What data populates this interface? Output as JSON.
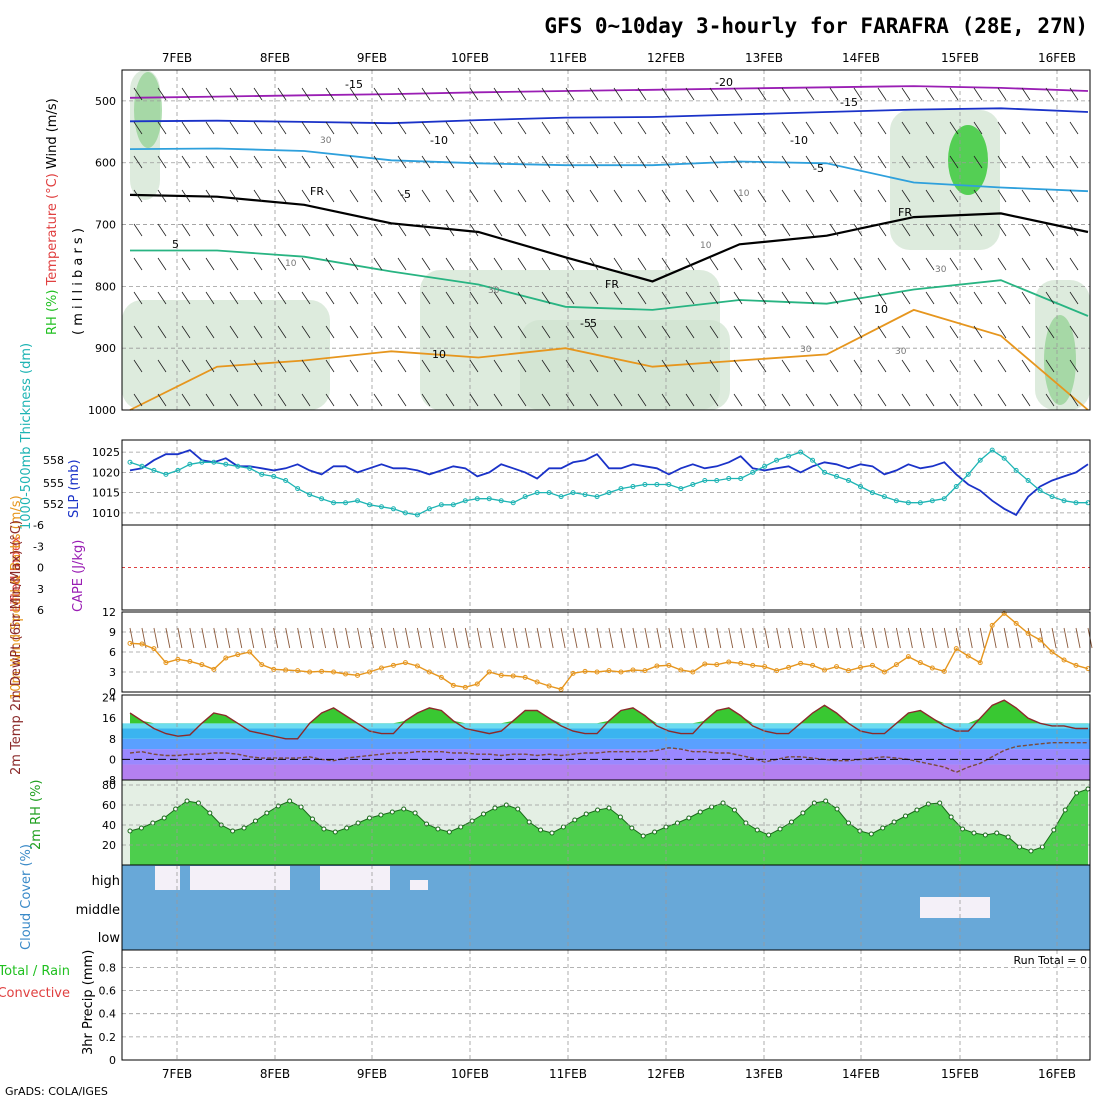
{
  "title": "GFS 0~10day 3-hourly for FARAFRA (28E, 27N)",
  "footer": "GrADS: COLA/IGES",
  "run_total": "Run Total = 0",
  "colors": {
    "blue_line": "#1a32c8",
    "cyan_line": "#1eb4b4",
    "orange_line": "#e6961e",
    "temp_fill": "#39c832",
    "rh_fill": "#32c832",
    "cloud_fill": "#68a8d8",
    "cape_zero": "#e04040",
    "purple": "#9a1eb4"
  },
  "chart_data": [
    {
      "type": "heatmap",
      "panel": "upper-air",
      "ylabel_parts": [
        "RH (%)",
        "Temperature (°C)",
        "Wind (m/s)"
      ],
      "yaxis_label": "( m i l l i b a r s )",
      "y_ticks": [
        "500",
        "600",
        "700",
        "800",
        "900",
        "1000"
      ],
      "ylim": [
        1000,
        450
      ],
      "x_ticks": [
        "7FEB",
        "8FEB",
        "9FEB",
        "10FEB",
        "11FEB",
        "12FEB",
        "13FEB",
        "14FEB",
        "15FEB",
        "16FEB"
      ],
      "isotherm_labels": [
        "-20",
        "-15",
        "-15",
        "-10",
        "-10",
        "-5",
        "-5",
        "-5",
        "5",
        "5",
        "10",
        "10",
        "FR",
        "FR",
        "FR"
      ],
      "rh_contour_labels": [
        "30",
        "30",
        "10",
        "10",
        "30",
        "30",
        "30",
        "10"
      ],
      "isotherms_hpa": [
        {
          "name": "-15",
          "values": [
            495,
            493,
            491,
            489,
            486,
            484,
            482,
            480,
            478,
            476,
            479,
            484
          ]
        },
        {
          "name": "-10",
          "values": [
            533,
            532,
            534,
            536,
            531,
            527,
            526,
            522,
            518,
            514,
            512,
            518
          ]
        },
        {
          "name": "-5",
          "values": [
            578,
            577,
            581,
            596,
            601,
            604,
            604,
            598,
            601,
            632,
            640,
            646
          ]
        },
        {
          "name": "FR",
          "values": [
            652,
            655,
            668,
            698,
            712,
            753,
            792,
            732,
            718,
            688,
            682,
            712
          ]
        },
        {
          "name": "5",
          "values": [
            742,
            742,
            752,
            776,
            797,
            833,
            838,
            822,
            828,
            805,
            790,
            848
          ]
        },
        {
          "name": "10",
          "values": [
            1000,
            930,
            920,
            905,
            915,
            900,
            930,
            920,
            910,
            838,
            880,
            1000
          ]
        }
      ]
    },
    {
      "type": "line",
      "panel": "thickness-slp",
      "ylabel_left": "1000-500mb Thickness (dm)",
      "ylabel_right": "SLP (mb)",
      "y_ticks_left": [
        "558",
        "555",
        "552"
      ],
      "y_ticks_right": [
        "1025",
        "1020",
        "1015",
        "1010"
      ],
      "ylim": [
        1007,
        1028
      ],
      "series": [
        {
          "name": "SLP",
          "values": [
            1020.5,
            1021,
            1023,
            1024.5,
            1024.5,
            1025.5,
            1023,
            1022.5,
            1023.5,
            1021.5,
            1021.5,
            1021,
            1020.5,
            1021,
            1022,
            1020.5,
            1019.5,
            1021.5,
            1021.5,
            1020,
            1021,
            1022,
            1021,
            1021,
            1020.5,
            1019.5,
            1020.5,
            1021.5,
            1021,
            1019,
            1020,
            1022,
            1021,
            1020,
            1018.5,
            1021,
            1021,
            1022.5,
            1023,
            1024.5,
            1021,
            1021,
            1022,
            1021.5,
            1021,
            1019.5,
            1021,
            1022,
            1021,
            1021.5,
            1022.5,
            1024,
            1021,
            1020.5,
            1021,
            1021.5,
            1020,
            1021.5,
            1022.5,
            1022,
            1021,
            1022,
            1021.5,
            1019.5,
            1020.5,
            1022,
            1021,
            1021.5,
            1022.5,
            1019.5,
            1017,
            1015.5,
            1013,
            1011,
            1009.5,
            1014,
            1016.5,
            1018,
            1019,
            1020,
            1022
          ]
        },
        {
          "name": "Thickness",
          "values": [
            1022.5,
            1021.5,
            1020.5,
            1019.5,
            1020.5,
            1022,
            1022.5,
            1022.5,
            1022,
            1021.5,
            1021,
            1019.5,
            1019,
            1018,
            1016,
            1014.5,
            1013.5,
            1012.5,
            1012.5,
            1013,
            1012,
            1011.5,
            1011,
            1010,
            1009.5,
            1011,
            1012,
            1012,
            1013,
            1013.5,
            1013.5,
            1013,
            1012.5,
            1014,
            1015,
            1015,
            1014,
            1015,
            1014.5,
            1014,
            1015,
            1016,
            1016.5,
            1017,
            1017,
            1017,
            1016,
            1017,
            1018,
            1018,
            1018.5,
            1018.5,
            1020,
            1021.5,
            1023,
            1024,
            1025,
            1023,
            1020,
            1019,
            1018,
            1016.5,
            1015,
            1014,
            1013,
            1012.5,
            1012.5,
            1013,
            1013.5,
            1016.5,
            1019.5,
            1023,
            1025.5,
            1023.5,
            1020.5,
            1018,
            1015.5,
            1014,
            1013,
            1012.5,
            1012.5
          ]
        }
      ]
    },
    {
      "type": "line",
      "panel": "cape-li",
      "ylabel_left": "Lifted Index",
      "ylabel_right": "CAPE (J/kg)",
      "y_ticks": [
        "-6",
        "-3",
        "0",
        "3",
        "6"
      ],
      "ylim": [
        6,
        -6
      ],
      "series": [
        {
          "name": "Lifted Index",
          "values": [
            0
          ]
        }
      ]
    },
    {
      "type": "line",
      "panel": "10m-wind",
      "ylabel": "10m Wind Speed & Barbs (m/s)",
      "y_ticks": [
        "0",
        "3",
        "6",
        "9",
        "12"
      ],
      "ylim": [
        0,
        12
      ],
      "series": [
        {
          "name": "10m Wind Speed",
          "values": [
            7.3,
            7.2,
            6.5,
            4.4,
            4.9,
            4.6,
            4.1,
            3.4,
            5.1,
            5.6,
            6.0,
            4.1,
            3.4,
            3.3,
            3.2,
            3.0,
            3.1,
            3.0,
            2.7,
            2.5,
            3.0,
            3.6,
            4.0,
            4.4,
            3.9,
            3.0,
            2.2,
            1.0,
            0.7,
            1.2,
            3.0,
            2.5,
            2.4,
            2.2,
            1.5,
            0.9,
            0.4,
            2.8,
            3.1,
            3.0,
            3.2,
            3.0,
            3.3,
            3.2,
            3.9,
            4.0,
            3.3,
            3.0,
            4.2,
            4.1,
            4.5,
            4.3,
            4.0,
            3.8,
            3.2,
            3.7,
            4.3,
            4.0,
            3.3,
            3.8,
            3.2,
            3.7,
            4.0,
            3.0,
            4.1,
            5.3,
            4.4,
            3.6,
            3.1,
            6.5,
            5.4,
            4.4,
            10.0,
            11.8,
            10.3,
            8.8,
            7.8,
            6.0,
            4.8,
            4.0,
            3.5
          ]
        }
      ]
    },
    {
      "type": "area",
      "panel": "2m-temp",
      "ylabel": "2m Temp 2m DewPt (6hr Min/Max) (°C)",
      "y_ticks": [
        "24",
        "16",
        "8",
        "0",
        "-8"
      ],
      "ylim": [
        -8,
        25
      ],
      "series": [
        {
          "name": "2m Temp",
          "values": [
            18,
            15,
            12,
            10,
            9,
            9.5,
            14,
            18,
            17,
            14,
            11,
            10,
            9,
            8,
            8,
            14,
            18,
            20,
            17,
            14,
            11,
            10,
            10,
            15,
            18,
            20,
            19,
            15,
            12,
            11,
            10,
            11,
            15,
            19,
            19,
            16,
            13,
            11,
            10,
            10,
            15,
            19,
            20,
            17,
            13,
            11,
            10,
            10,
            15,
            19,
            20,
            17,
            13,
            11,
            10,
            10,
            14,
            18,
            21,
            18,
            14,
            11,
            10,
            10,
            14,
            18,
            19,
            16,
            13,
            11,
            11,
            16,
            21,
            23,
            20,
            16,
            14,
            13,
            13,
            12,
            12
          ]
        },
        {
          "name": "2m DewPt",
          "values": [
            2.5,
            3.0,
            2.0,
            1.5,
            1.5,
            2.0,
            2.0,
            2.5,
            2.5,
            2.0,
            1.0,
            0.5,
            0.5,
            0.5,
            0.5,
            1.0,
            0.0,
            -0.5,
            0.5,
            1.0,
            1.5,
            2.0,
            2.5,
            2.5,
            3.0,
            3.0,
            3.0,
            2.5,
            2.5,
            2.0,
            2.0,
            1.5,
            2.0,
            2.0,
            1.5,
            2.0,
            1.5,
            2.0,
            2.5,
            2.5,
            3.0,
            3.0,
            3.0,
            3.0,
            3.5,
            4.5,
            4.0,
            3.0,
            3.0,
            2.5,
            2.5,
            1.5,
            0.5,
            -1.0,
            0.0,
            1.0,
            1.0,
            0.5,
            0.0,
            -0.5,
            -0.5,
            0.0,
            0.5,
            1.0,
            0.5,
            0.0,
            -1.0,
            -2.0,
            -3.0,
            -5.0,
            -3.0,
            -1.5,
            1.0,
            3.5,
            5.0,
            5.5,
            6.0,
            6.5,
            6.5,
            6.5,
            6.5
          ]
        }
      ]
    },
    {
      "type": "area",
      "panel": "2m-rh",
      "ylabel": "2m RH (%)",
      "y_ticks": [
        "20",
        "40",
        "60",
        "80"
      ],
      "ylim": [
        0,
        85
      ],
      "series": [
        {
          "name": "2m RH",
          "values": [
            34,
            37,
            42,
            47,
            56,
            64,
            62,
            52,
            40,
            34,
            37,
            44,
            52,
            59,
            64,
            58,
            46,
            36,
            33,
            37,
            42,
            47,
            50,
            53,
            56,
            52,
            41,
            36,
            33,
            38,
            44,
            51,
            57,
            60,
            56,
            43,
            35,
            32,
            38,
            45,
            51,
            55,
            57,
            48,
            37,
            29,
            33,
            38,
            42,
            47,
            53,
            58,
            62,
            55,
            42,
            35,
            30,
            36,
            43,
            52,
            62,
            64,
            56,
            42,
            34,
            31,
            37,
            43,
            49,
            55,
            61,
            62,
            48,
            36,
            32,
            30,
            32,
            28,
            18,
            14,
            18,
            35,
            55,
            72,
            76
          ]
        }
      ]
    },
    {
      "type": "heatmap",
      "panel": "cloud-cover",
      "ylabel": "Cloud Cover (%)",
      "row_labels": [
        "high",
        "middle",
        "low"
      ]
    },
    {
      "type": "bar",
      "panel": "precip",
      "ylabel_left": "Total / Rain",
      "ylabel_right": "Convective",
      "ylabel_units": "3hr Precip (mm)",
      "y_ticks": [
        "0",
        "0.2",
        "0.4",
        "0.6",
        "0.8"
      ],
      "ylim": [
        0,
        0.95
      ],
      "x_ticks": [
        "7FEB",
        "8FEB",
        "9FEB",
        "10FEB",
        "11FEB",
        "12FEB",
        "13FEB",
        "14FEB",
        "15FEB",
        "16FEB"
      ],
      "values": [
        0
      ]
    }
  ]
}
